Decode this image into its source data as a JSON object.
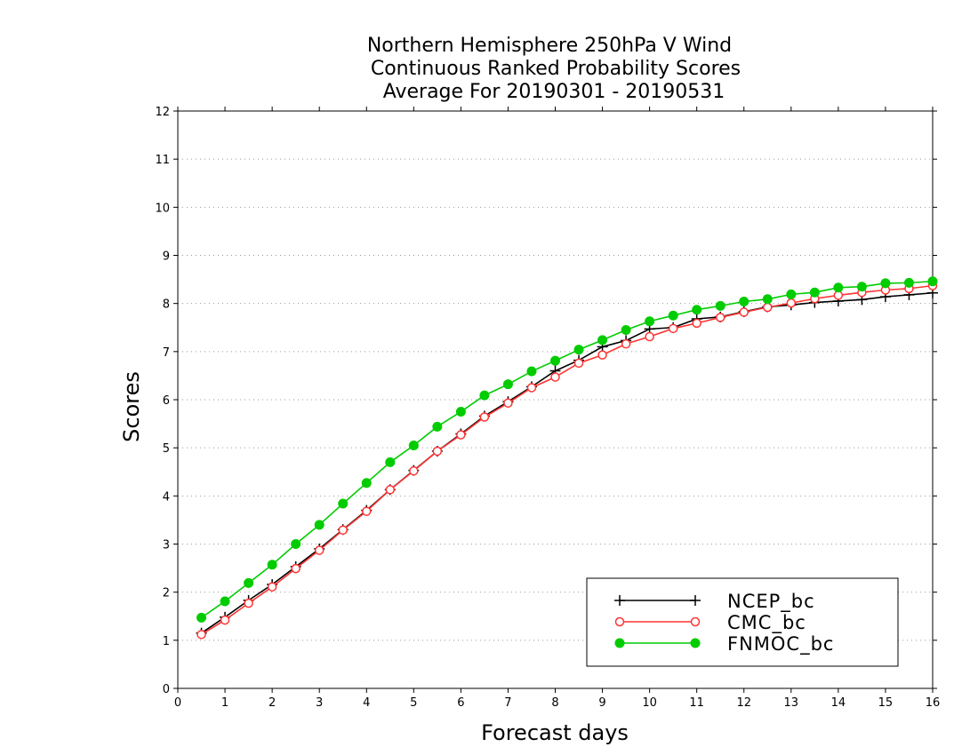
{
  "chart_data": {
    "type": "line",
    "title_lines": [
      "Northern Hemisphere 250hPa V Wind",
      "Continuous Ranked Probability Scores",
      "Average For 20190301 - 20190531"
    ],
    "xlabel": "Forecast days",
    "ylabel": "Scores",
    "xlim": [
      0,
      16
    ],
    "ylim": [
      0,
      12
    ],
    "x_ticks": [
      "0",
      "1",
      "2",
      "3",
      "4",
      "5",
      "6",
      "7",
      "8",
      "9",
      "10",
      "11",
      "12",
      "13",
      "14",
      "15",
      "16"
    ],
    "y_ticks": [
      "0",
      "1",
      "2",
      "3",
      "4",
      "5",
      "6",
      "7",
      "8",
      "9",
      "10",
      "11",
      "12"
    ],
    "grid": true,
    "legend_position": "bottom-right",
    "x": [
      0.5,
      1,
      1.5,
      2,
      2.5,
      3,
      3.5,
      4,
      4.5,
      5,
      5.5,
      6,
      6.5,
      7,
      7.5,
      8,
      8.5,
      9,
      9.5,
      10,
      10.5,
      11,
      11.5,
      12,
      12.5,
      13,
      13.5,
      14,
      14.5,
      15,
      15.5,
      16
    ],
    "series": [
      {
        "name": "NCEP_bc",
        "color": "#000000",
        "marker": "plus",
        "values": [
          1.15,
          1.48,
          1.83,
          2.16,
          2.53,
          2.9,
          3.3,
          3.7,
          4.13,
          4.53,
          4.93,
          5.29,
          5.66,
          5.96,
          6.27,
          6.6,
          6.82,
          7.1,
          7.23,
          7.47,
          7.5,
          7.68,
          7.72,
          7.83,
          7.93,
          7.97,
          8.02,
          8.05,
          8.08,
          8.14,
          8.18,
          8.22
        ]
      },
      {
        "name": "CMC_bc",
        "color": "#ff3333",
        "marker": "open-circle",
        "values": [
          1.12,
          1.42,
          1.77,
          2.11,
          2.49,
          2.87,
          3.29,
          3.68,
          4.13,
          4.52,
          4.93,
          5.27,
          5.64,
          5.93,
          6.25,
          6.47,
          6.76,
          6.93,
          7.16,
          7.31,
          7.48,
          7.59,
          7.71,
          7.82,
          7.92,
          8.01,
          8.1,
          8.17,
          8.23,
          8.28,
          8.31,
          8.37
        ]
      },
      {
        "name": "FNMOC_bc",
        "color": "#00cc00",
        "marker": "filled-circle",
        "values": [
          1.47,
          1.81,
          2.19,
          2.57,
          3.0,
          3.4,
          3.84,
          4.27,
          4.7,
          5.05,
          5.44,
          5.75,
          6.09,
          6.32,
          6.59,
          6.81,
          7.04,
          7.24,
          7.45,
          7.63,
          7.75,
          7.87,
          7.95,
          8.04,
          8.09,
          8.19,
          8.23,
          8.33,
          8.35,
          8.42,
          8.43,
          8.46
        ]
      }
    ]
  }
}
